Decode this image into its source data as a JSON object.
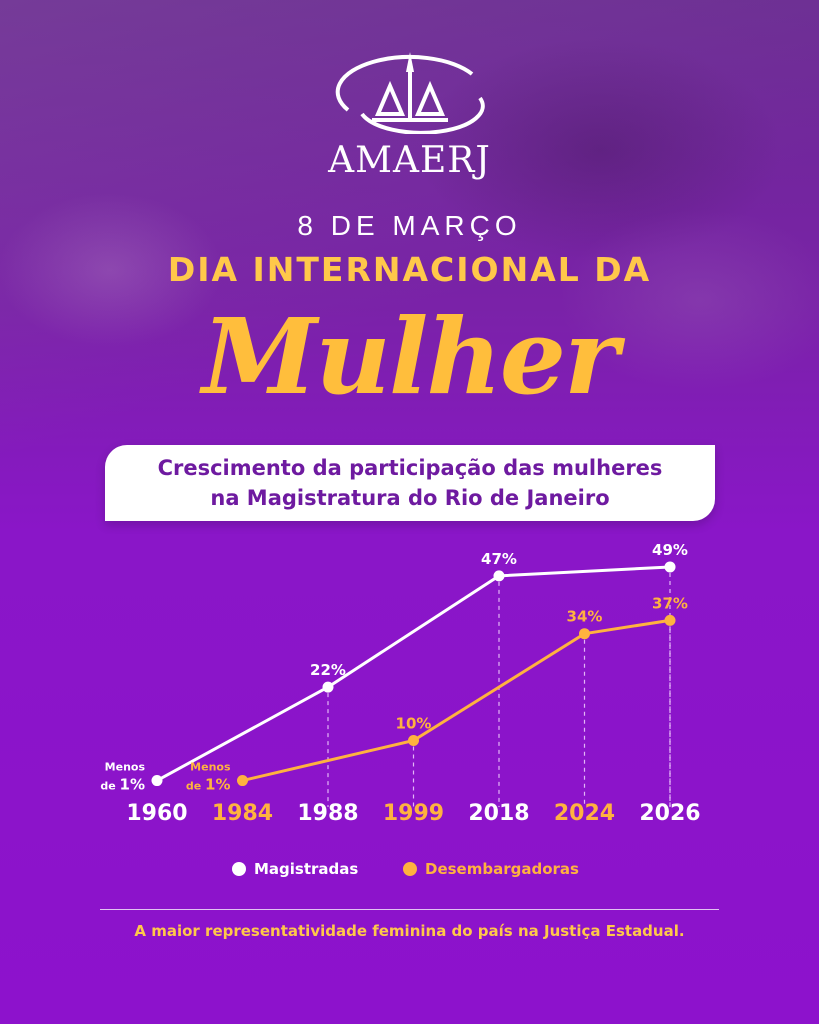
{
  "brand": {
    "name": "AMAERJ"
  },
  "header": {
    "date": "8 DE MARÇO",
    "headline": "DIA INTERNACIONAL DA",
    "script_word": "Mulher"
  },
  "subtitle": {
    "line1": "Crescimento da participação das mulheres",
    "line2": "na Magistratura do Rio de Janeiro"
  },
  "colors": {
    "white_series": "#ffffff",
    "orange_series": "#ffb23f",
    "background": "#8a16c8"
  },
  "chart_data": {
    "type": "line",
    "title": "Crescimento da participação das mulheres na Magistratura do Rio de Janeiro",
    "x": [
      "1960",
      "1984",
      "1988",
      "1999",
      "2018",
      "2024",
      "2026"
    ],
    "x_label_colors": [
      "#ffffff",
      "#ffb23f",
      "#ffffff",
      "#ffb23f",
      "#ffffff",
      "#ffb23f",
      "#ffffff"
    ],
    "ylim": [
      0,
      50
    ],
    "grid": false,
    "legend_position": "bottom",
    "series": [
      {
        "name": "Magistradas",
        "color": "#ffffff",
        "points": [
          {
            "x": "1960",
            "y": 1,
            "label_line1": "Menos",
            "label_line2": "de ",
            "label_big": "1%"
          },
          {
            "x": "1988",
            "y": 22,
            "label": "22%"
          },
          {
            "x": "2018",
            "y": 47,
            "label": "47%"
          },
          {
            "x": "2026",
            "y": 49,
            "label": "49%"
          }
        ]
      },
      {
        "name": "Desembargadoras",
        "color": "#ffb23f",
        "points": [
          {
            "x": "1984",
            "y": 1,
            "label_line1": "Menos",
            "label_line2": "de ",
            "label_big": "1%"
          },
          {
            "x": "1999",
            "y": 10,
            "label": "10%"
          },
          {
            "x": "2024",
            "y": 34,
            "label": "34%"
          },
          {
            "x": "2026",
            "y": 37,
            "label": "37%"
          }
        ]
      }
    ]
  },
  "legend": {
    "items": [
      {
        "label": "Magistradas",
        "color": "#ffffff"
      },
      {
        "label": "Desembargadoras",
        "color": "#ffb23f"
      }
    ]
  },
  "footer": {
    "text": "A maior representatividade feminina do país na Justiça Estadual."
  }
}
